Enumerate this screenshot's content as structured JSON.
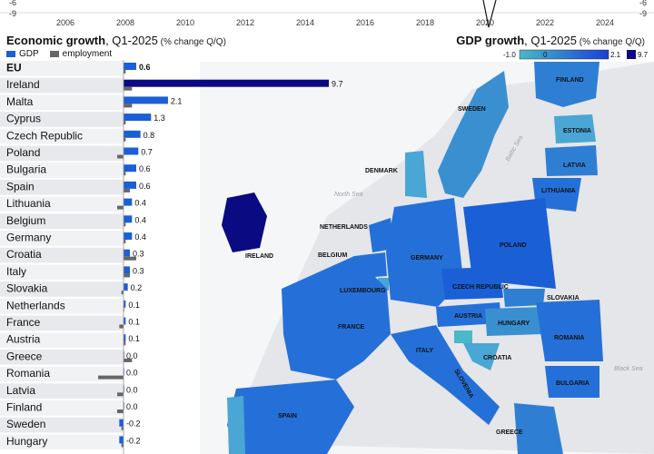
{
  "timeline": {
    "years": [
      "2006",
      "2008",
      "2010",
      "2012",
      "2014",
      "2016",
      "2018",
      "2020",
      "2022",
      "2024"
    ],
    "right_ticks": [
      "-6",
      "-9"
    ],
    "left_ticks": [
      "-6",
      "-9"
    ]
  },
  "bar_panel": {
    "title_bold": "Economic growth",
    "title_rest": ", Q1-2025",
    "title_unit": " (% change Q/Q)",
    "legend": [
      {
        "label": "GDP",
        "color": "#1a5fd6"
      },
      {
        "label": "employment",
        "color": "#666666"
      }
    ]
  },
  "map_panel": {
    "title_bold": "GDP growth",
    "title_rest": ", Q1-2025",
    "title_unit": " (% change Q/Q)",
    "scale_labels": [
      "-1.0",
      "0",
      "2.1",
      "9.7"
    ]
  },
  "chart_data": {
    "type": "bar",
    "title": "Economic growth, Q1-2025 (% change Q/Q)",
    "categories": [
      "EU",
      "Ireland",
      "Malta",
      "Cyprus",
      "Czech Republic",
      "Poland",
      "Bulgaria",
      "Spain",
      "Lithuania",
      "Belgium",
      "Germany",
      "Croatia",
      "Italy",
      "Slovakia",
      "Netherlands",
      "France",
      "Austria",
      "Greece",
      "Romania",
      "Latvia",
      "Finland",
      "Sweden",
      "Hungary"
    ],
    "series": [
      {
        "name": "GDP",
        "values": [
          0.6,
          9.7,
          2.1,
          1.3,
          0.8,
          0.7,
          0.6,
          0.6,
          0.4,
          0.4,
          0.4,
          0.3,
          0.3,
          0.2,
          0.1,
          0.1,
          0.1,
          0.0,
          0.0,
          0.0,
          0.0,
          -0.2,
          -0.2
        ]
      },
      {
        "name": "employment",
        "values": [
          0.1,
          0.4,
          0.4,
          0.1,
          0.1,
          -0.3,
          0.1,
          0.3,
          -0.3,
          0.1,
          0.1,
          0.6,
          0.3,
          -0.1,
          0.0,
          -0.2,
          0.1,
          0.4,
          -1.2,
          -0.3,
          -0.3,
          -0.1,
          -0.1
        ]
      }
    ],
    "value_labels": [
      "0.6",
      "9.7",
      "2.1",
      "1.3",
      "0.8",
      "0.7",
      "0.6",
      "0.6",
      "0.4",
      "0.4",
      "0.4",
      "0.3",
      "0.3",
      "0.2",
      "0.1",
      "0.1",
      "0.1",
      "0.0",
      "0.0",
      "0.0",
      "0.0",
      "-0.2",
      "-0.2"
    ]
  },
  "map_labels": {
    "countries": [
      "FINLAND",
      "SWEDEN",
      "ESTONIA",
      "LATVIA",
      "LITHUANIA",
      "DENMARK",
      "IRELAND",
      "NETHERLANDS",
      "BELGIUM",
      "GERMANY",
      "POLAND",
      "CZECH REPUBLIC",
      "LUXEMBOURG",
      "SLOVAKIA",
      "FRANCE",
      "AUSTRIA",
      "HUNGARY",
      "ROMANIA",
      "SLOVENIA",
      "CROATIA",
      "ITALY",
      "BULGARIA",
      "SPAIN",
      "GREECE"
    ],
    "seas": [
      "North Sea",
      "Baltic Sea",
      "Black Sea"
    ]
  },
  "colors": {
    "eu_bar": "#1a5fd6",
    "gdp_bar": "#1a5fd6",
    "ireland_bar": "#0a0a82",
    "employment": "#666666",
    "land": "#e4e6ea",
    "sea": "#f5f6f8"
  }
}
